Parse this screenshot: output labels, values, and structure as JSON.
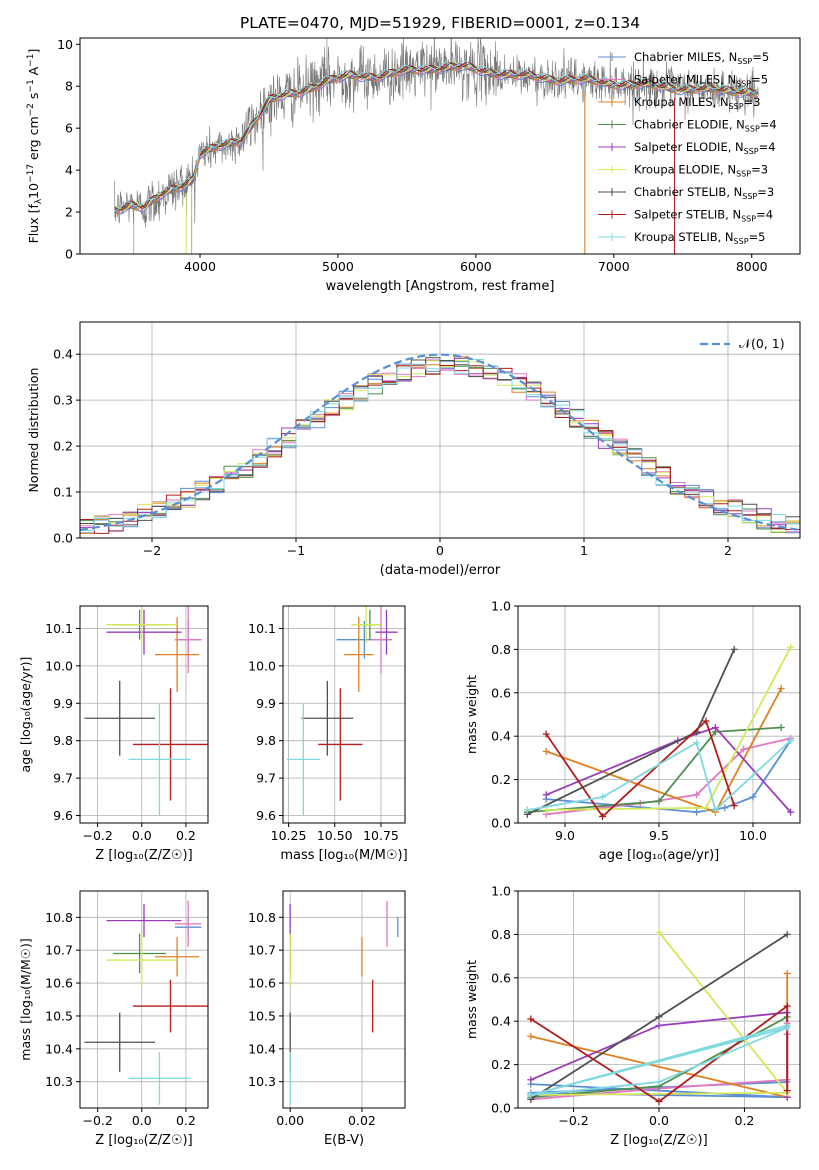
{
  "figure": {
    "title": "PLATE=0470, MJD=51929, FIBERID=0001, z=0.134"
  },
  "chart_data": [
    {
      "id": "spectrum",
      "type": "line",
      "xlabel": "wavelength [Angstrom, rest frame]",
      "ylabel_parts": [
        "Flux [f",
        "λ",
        "10",
        "−17",
        " erg cm",
        "−2",
        " s",
        "−1",
        " A",
        "−1",
        "]"
      ],
      "xlim": [
        3130,
        8350
      ],
      "ylim": [
        0,
        10.3
      ],
      "xticks": [
        4000,
        5000,
        6000,
        7000,
        8000
      ],
      "yticks": [
        0,
        2,
        4,
        6,
        8,
        10
      ],
      "grid": false,
      "legend_position": "right",
      "continuum": {
        "x": [
          3380,
          3500,
          3600,
          3700,
          3800,
          3900,
          3950,
          4000,
          4100,
          4200,
          4300,
          4400,
          4500,
          4700,
          4900,
          5100,
          5300,
          5500,
          5700,
          5900,
          6100,
          6300,
          6500,
          6700,
          6900,
          7100,
          7300,
          7500,
          7700,
          7900,
          8050
        ],
        "y": [
          2.1,
          2.4,
          2.2,
          2.7,
          3.1,
          3.4,
          3.6,
          4.8,
          5.0,
          5.2,
          5.5,
          6.4,
          7.3,
          7.7,
          8.2,
          8.5,
          8.5,
          8.7,
          8.9,
          8.9,
          8.7,
          8.5,
          8.4,
          8.3,
          8.2,
          8.1,
          8.0,
          7.9,
          7.8,
          7.8,
          7.7
        ]
      },
      "series": [
        {
          "label_prefix": "Chabrier MILES, N",
          "sub": "SSP",
          "label_suffix": "=5",
          "color": "#5b8fd4"
        },
        {
          "label_prefix": "Salpeter MILES, N",
          "sub": "SSP",
          "label_suffix": "=5",
          "color": "#e377c2"
        },
        {
          "label_prefix": "Kroupa MILES, N",
          "sub": "SSP",
          "label_suffix": "=3",
          "color": "#e08020"
        },
        {
          "label_prefix": "Chabrier ELODIE, N",
          "sub": "SSP",
          "label_suffix": "=4",
          "color": "#4e8f4e"
        },
        {
          "label_prefix": "Salpeter ELODIE, N",
          "sub": "SSP",
          "label_suffix": "=4",
          "color": "#9a3dbd"
        },
        {
          "label_prefix": "Kroupa ELODIE, N",
          "sub": "SSP",
          "label_suffix": "=3",
          "color": "#d4e85a"
        },
        {
          "label_prefix": "Chabrier STELIB, N",
          "sub": "SSP",
          "label_suffix": "=3",
          "color": "#505050"
        },
        {
          "label_prefix": "Salpeter STELIB, N",
          "sub": "SSP",
          "label_suffix": "=4",
          "color": "#b01e1e"
        },
        {
          "label_prefix": "Kroupa STELIB, N",
          "sub": "SSP",
          "label_suffix": "=5",
          "color": "#7fd9e0"
        }
      ]
    },
    {
      "id": "residuals",
      "type": "histogram",
      "xlabel": "(data-model)/error",
      "ylabel": "Normed distribution",
      "xlim": [
        -2.5,
        2.5
      ],
      "ylim": [
        0,
        0.47
      ],
      "xticks": [
        -2,
        -1,
        0,
        1,
        2
      ],
      "xtick_labels": [
        "−2",
        "−1",
        "0",
        "1",
        "2"
      ],
      "yticks": [
        0.0,
        0.1,
        0.2,
        0.3,
        0.4
      ],
      "ytick_labels": [
        "0.0",
        "0.1",
        "0.2",
        "0.3",
        "0.4"
      ],
      "grid": true,
      "bin_width": 0.1,
      "gaussian": {
        "label": "𝒩(0, 1)",
        "color": "#5b8fd4"
      },
      "legend_position": "top-right"
    },
    {
      "id": "age-vs-z",
      "type": "errorbar",
      "xlabel": "Z [log₁₀(Z/Z☉)]",
      "ylabel": "age  [log₁₀(age/yr)]",
      "xlim": [
        -0.28,
        0.3
      ],
      "ylim": [
        9.58,
        10.16
      ],
      "xticks": [
        -0.2,
        0.0,
        0.2
      ],
      "xtick_labels": [
        "−0.2",
        "0.0",
        "0.2"
      ],
      "yticks": [
        9.6,
        9.7,
        9.8,
        9.9,
        10.0,
        10.1
      ],
      "ytick_labels": [
        "9.6",
        "9.7",
        "9.8",
        "9.9",
        "10.0",
        "10.1"
      ],
      "grid": true
    },
    {
      "id": "age-vs-mass",
      "type": "errorbar",
      "xlabel": "mass [log₁₀(M/M☉)]",
      "xlim": [
        10.22,
        10.88
      ],
      "ylim": [
        9.58,
        10.16
      ],
      "xticks": [
        10.25,
        10.5,
        10.75
      ],
      "xtick_labels": [
        "10.25",
        "10.50",
        "10.75"
      ],
      "yticks": [
        9.6,
        9.7,
        9.8,
        9.9,
        10.0,
        10.1
      ],
      "ytick_labels": [
        "9.6",
        "9.7",
        "9.8",
        "9.9",
        "10.0",
        "10.1"
      ],
      "grid": true
    },
    {
      "id": "weight-vs-age",
      "type": "line",
      "xlabel": "age  [log₁₀(age/yr)]",
      "ylabel": "mass weight",
      "xlim": [
        8.75,
        10.25
      ],
      "ylim": [
        0,
        1.0
      ],
      "xticks": [
        9.0,
        9.5,
        10.0
      ],
      "xtick_labels": [
        "9.0",
        "9.5",
        "10.0"
      ],
      "yticks": [
        0.0,
        0.2,
        0.4,
        0.6,
        0.8,
        1.0
      ],
      "ytick_labels": [
        "0.0",
        "0.2",
        "0.4",
        "0.6",
        "0.8",
        "1.0"
      ],
      "grid": true
    },
    {
      "id": "mass-vs-z",
      "type": "errorbar",
      "xlabel": "Z [log₁₀(Z/Z☉)]",
      "ylabel": "mass [log₁₀(M/M☉)]",
      "xlim": [
        -0.28,
        0.3
      ],
      "ylim": [
        10.22,
        10.88
      ],
      "xticks": [
        -0.2,
        0.0,
        0.2
      ],
      "xtick_labels": [
        "−0.2",
        "0.0",
        "0.2"
      ],
      "yticks": [
        10.3,
        10.4,
        10.5,
        10.6,
        10.7,
        10.8
      ],
      "ytick_labels": [
        "10.3",
        "10.4",
        "10.5",
        "10.6",
        "10.7",
        "10.8"
      ],
      "grid": true
    },
    {
      "id": "mass-vs-ebv",
      "type": "errorbar",
      "xlabel": "E(B-V)",
      "xlim": [
        -0.002,
        0.032
      ],
      "ylim": [
        10.22,
        10.88
      ],
      "xticks": [
        0.0,
        0.02
      ],
      "xtick_labels": [
        "0.00",
        "0.02"
      ],
      "yticks": [
        10.3,
        10.4,
        10.5,
        10.6,
        10.7,
        10.8
      ],
      "ytick_labels": [
        "10.3",
        "10.4",
        "10.5",
        "10.6",
        "10.7",
        "10.8"
      ],
      "grid": true
    },
    {
      "id": "weight-vs-z",
      "type": "line",
      "xlabel": "Z [log₁₀(Z/Z☉)]",
      "ylabel": "mass weight",
      "xlim": [
        -0.33,
        0.33
      ],
      "ylim": [
        0,
        1.0
      ],
      "xticks": [
        -0.2,
        0.0,
        0.2
      ],
      "xtick_labels": [
        "−0.2",
        "0.0",
        "0.2"
      ],
      "yticks": [
        0.0,
        0.2,
        0.4,
        0.6,
        0.8,
        1.0
      ],
      "ytick_labels": [
        "0.0",
        "0.2",
        "0.4",
        "0.6",
        "0.8",
        "1.0"
      ],
      "grid": true
    }
  ],
  "fits": [
    {
      "color": "#5b8fd4",
      "age": [
        10.07,
        0.05
      ],
      "Z": [
        0.21,
        0.06
      ],
      "mass": [
        10.66,
        0.15
      ],
      "mass_c": [
        10.77,
        0.03
      ],
      "ebv": 0.03,
      "weights": {
        "age": [
          8.9,
          9.7,
          9.85,
          10.0,
          10.2
        ],
        "Z": [
          -0.3,
          0.3,
          -0.3,
          0.3,
          0.3
        ],
        "w": [
          0.11,
          0.05,
          0.07,
          0.12,
          0.38
        ]
      }
    },
    {
      "color": "#e377c2",
      "age": [
        10.07,
        0.09
      ],
      "Z": [
        0.21,
        0.06
      ],
      "mass": [
        10.75,
        0.05
      ],
      "mass_c": [
        10.78,
        0.07
      ],
      "ebv": 0.027,
      "weights": {
        "age": [
          8.9,
          9.4,
          9.7,
          9.95,
          10.2
        ],
        "Z": [
          -0.3,
          0.0,
          0.3,
          0.3,
          0.3
        ],
        "w": [
          0.04,
          0.09,
          0.13,
          0.34,
          0.39
        ]
      }
    },
    {
      "color": "#e08020",
      "age": [
        10.03,
        0.1
      ],
      "Z": [
        0.16,
        0.1
      ],
      "mass": [
        10.63,
        0.08
      ],
      "mass_c": [
        10.68,
        0.06
      ],
      "ebv": 0.02,
      "weights": {
        "age": [
          8.9,
          9.8,
          10.15
        ],
        "Z": [
          -0.3,
          0.3,
          0.3
        ],
        "w": [
          0.33,
          0.05,
          0.62
        ]
      }
    },
    {
      "color": "#4e8f4e",
      "age": [
        10.11,
        0.04
      ],
      "Z": [
        -0.01,
        0.12
      ],
      "mass": [
        10.69,
        0.06
      ],
      "mass_c": [
        10.69,
        0.06
      ],
      "ebv": 0.0,
      "weights": {
        "age": [
          8.8,
          9.5,
          9.8,
          10.15
        ],
        "Z": [
          -0.3,
          0.0,
          0.3,
          0.3
        ],
        "w": [
          0.05,
          0.1,
          0.42,
          0.44
        ]
      }
    },
    {
      "color": "#9a3dbd",
      "age": [
        10.09,
        0.06
      ],
      "Z": [
        0.01,
        0.17
      ],
      "mass": [
        10.78,
        0.06
      ],
      "mass_c": [
        10.79,
        0.05
      ],
      "ebv": 0.0,
      "weights": {
        "age": [
          8.9,
          9.6,
          9.8,
          10.2
        ],
        "Z": [
          -0.3,
          0.0,
          0.3,
          0.3
        ],
        "w": [
          0.13,
          0.38,
          0.44,
          0.05
        ]
      }
    },
    {
      "color": "#d4e85a",
      "age": [
        10.11,
        0.05
      ],
      "Z": [
        0.0,
        0.16
      ],
      "mass": [
        10.67,
        0.08
      ],
      "mass_c": [
        10.67,
        0.08
      ],
      "ebv": 0.0,
      "weights": {
        "age": [
          8.9,
          9.75,
          10.2
        ],
        "Z": [
          -0.3,
          0.3,
          0.0
        ],
        "w": [
          0.06,
          0.07,
          0.81
        ]
      }
    },
    {
      "color": "#505050",
      "age": [
        9.86,
        0.1
      ],
      "Z": [
        -0.1,
        0.16
      ],
      "mass": [
        10.46,
        0.14
      ],
      "mass_c": [
        10.42,
        0.09
      ],
      "ebv": 0.0,
      "weights": {
        "age": [
          8.8,
          9.7,
          9.9
        ],
        "Z": [
          -0.3,
          0.0,
          0.3
        ],
        "w": [
          0.04,
          0.42,
          0.8
        ]
      }
    },
    {
      "color": "#b01e1e",
      "age": [
        9.79,
        0.15
      ],
      "Z": [
        0.13,
        0.17
      ],
      "mass": [
        10.53,
        0.12
      ],
      "mass_c": [
        10.53,
        0.08
      ],
      "ebv": 0.023,
      "weights": {
        "age": [
          8.9,
          9.2,
          9.75,
          9.9
        ],
        "Z": [
          -0.3,
          0.0,
          0.3,
          0.3
        ],
        "w": [
          0.41,
          0.03,
          0.47,
          0.08
        ]
      }
    },
    {
      "color": "#7fd9e0",
      "age": [
        9.75,
        0.15
      ],
      "Z": [
        0.08,
        0.14
      ],
      "mass": [
        10.33,
        0.09
      ],
      "mass_c": [
        10.31,
        0.08
      ],
      "ebv": 0.0,
      "weights": {
        "age": [
          8.8,
          9.2,
          9.7,
          9.8,
          10.2
        ],
        "Z": [
          -0.3,
          0.0,
          0.3,
          -0.3,
          0.3
        ],
        "w": [
          0.06,
          0.12,
          0.37,
          0.06,
          0.38
        ]
      }
    }
  ]
}
